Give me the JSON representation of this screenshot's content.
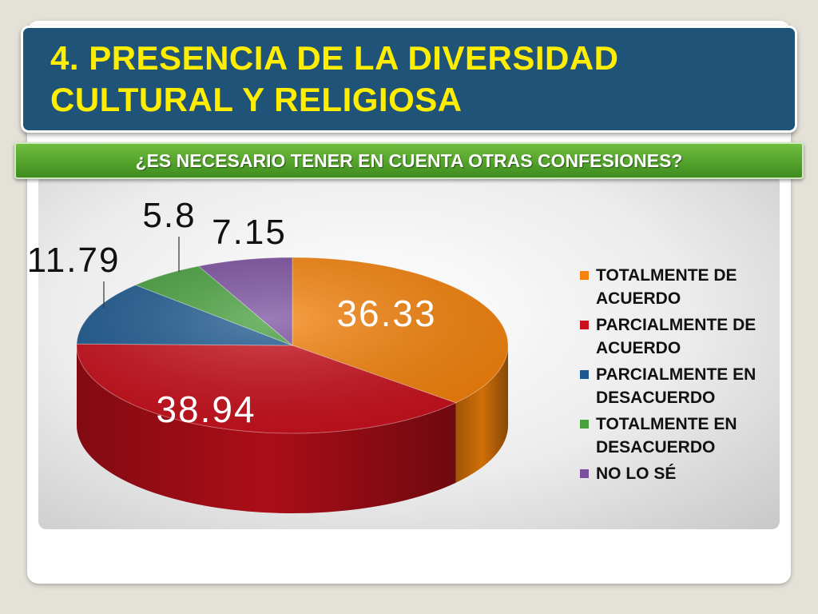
{
  "title": "4. PRESENCIA DE LA DIVERSIDAD CULTURAL Y RELIGIOSA",
  "question": "¿ES NECESARIO TENER EN CUENTA OTRAS CONFESIONES?",
  "chart_data": {
    "type": "pie",
    "title": "",
    "legend_position": "right",
    "slices": [
      {
        "label": "TOTALMENTE DE ACUERDO",
        "value": 36.33,
        "display": "36.33",
        "color": "#f5820a"
      },
      {
        "label": "PARCIALMENTE DE ACUERDO",
        "value": 38.94,
        "display": "38.94",
        "color": "#c9101c"
      },
      {
        "label": "PARCIALMENTE EN DESACUERDO",
        "value": 11.79,
        "display": "11.79",
        "color": "#1d5a91"
      },
      {
        "label": "TOTALMENTE EN DESACUERDO",
        "value": 5.8,
        "display": "5.8",
        "color": "#46a03c"
      },
      {
        "label": "NO LO SÉ",
        "value": 7.15,
        "display": "7.15",
        "color": "#7b4fa0"
      }
    ]
  }
}
